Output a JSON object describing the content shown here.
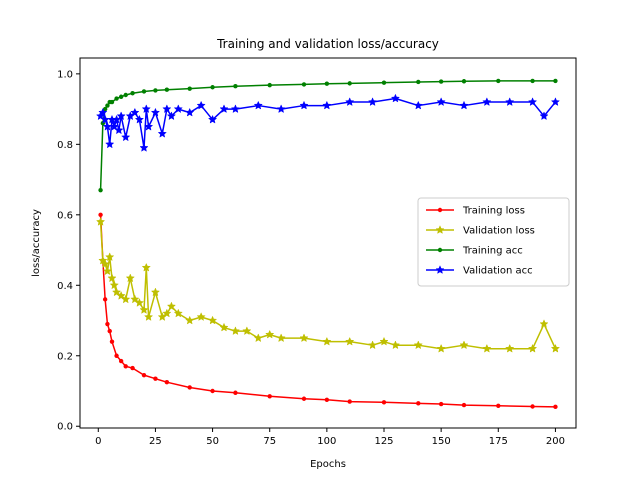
{
  "chart_data": {
    "type": "line",
    "title": "Training and validation loss/accuracy",
    "xlabel": "Epochs",
    "ylabel": "loss/accuracy",
    "xlim": [
      -8,
      209
    ],
    "ylim": [
      -0.005,
      1.045
    ],
    "xticks": [
      0,
      25,
      50,
      75,
      100,
      125,
      150,
      175,
      200
    ],
    "yticks": [
      0.0,
      0.2,
      0.4,
      0.6,
      0.8,
      1.0
    ],
    "xtick_labels": [
      "0",
      "25",
      "50",
      "75",
      "100",
      "125",
      "150",
      "175",
      "200"
    ],
    "ytick_labels": [
      "0.0",
      "0.2",
      "0.4",
      "0.6",
      "0.8",
      "1.0"
    ],
    "grid": false,
    "legend_position": "center-right",
    "series": [
      {
        "name": "Training loss",
        "color": "#ff0000",
        "marker": "dot",
        "x": [
          1,
          2,
          3,
          4,
          5,
          6,
          8,
          10,
          12,
          15,
          20,
          25,
          30,
          40,
          50,
          60,
          75,
          90,
          100,
          110,
          125,
          140,
          150,
          160,
          175,
          190,
          200
        ],
        "y": [
          0.6,
          0.47,
          0.36,
          0.29,
          0.27,
          0.24,
          0.2,
          0.185,
          0.17,
          0.165,
          0.145,
          0.135,
          0.125,
          0.11,
          0.1,
          0.095,
          0.085,
          0.078,
          0.075,
          0.07,
          0.068,
          0.065,
          0.063,
          0.06,
          0.058,
          0.056,
          0.055
        ]
      },
      {
        "name": "Validation loss",
        "color": "#bfbf00",
        "marker": "star",
        "x": [
          1,
          2,
          3,
          4,
          5,
          6,
          7,
          8,
          10,
          12,
          14,
          16,
          18,
          20,
          21,
          22,
          25,
          28,
          30,
          32,
          35,
          40,
          45,
          50,
          55,
          60,
          65,
          70,
          75,
          80,
          90,
          100,
          110,
          120,
          125,
          130,
          140,
          150,
          160,
          170,
          180,
          190,
          195,
          200
        ],
        "y": [
          0.58,
          0.47,
          0.46,
          0.44,
          0.48,
          0.42,
          0.4,
          0.38,
          0.37,
          0.36,
          0.42,
          0.36,
          0.35,
          0.33,
          0.45,
          0.31,
          0.38,
          0.31,
          0.32,
          0.34,
          0.32,
          0.3,
          0.31,
          0.3,
          0.28,
          0.27,
          0.27,
          0.25,
          0.26,
          0.25,
          0.25,
          0.24,
          0.24,
          0.23,
          0.24,
          0.23,
          0.23,
          0.22,
          0.23,
          0.22,
          0.22,
          0.22,
          0.29,
          0.22
        ]
      },
      {
        "name": "Training acc",
        "color": "#008000",
        "marker": "dot",
        "x": [
          1,
          2,
          3,
          4,
          5,
          6,
          8,
          10,
          12,
          15,
          20,
          25,
          30,
          40,
          50,
          60,
          75,
          90,
          100,
          110,
          125,
          140,
          150,
          160,
          175,
          190,
          200
        ],
        "y": [
          0.67,
          0.86,
          0.9,
          0.91,
          0.92,
          0.92,
          0.93,
          0.935,
          0.94,
          0.945,
          0.95,
          0.953,
          0.955,
          0.958,
          0.962,
          0.965,
          0.968,
          0.97,
          0.972,
          0.973,
          0.975,
          0.977,
          0.978,
          0.979,
          0.98,
          0.98,
          0.98
        ]
      },
      {
        "name": "Validation acc",
        "color": "#0000ff",
        "marker": "star",
        "x": [
          1,
          2,
          3,
          4,
          5,
          6,
          7,
          8,
          9,
          10,
          12,
          14,
          16,
          18,
          20,
          21,
          22,
          25,
          28,
          30,
          32,
          35,
          40,
          45,
          50,
          55,
          60,
          70,
          80,
          90,
          100,
          110,
          120,
          130,
          140,
          150,
          160,
          170,
          180,
          190,
          195,
          200
        ],
        "y": [
          0.88,
          0.89,
          0.87,
          0.85,
          0.8,
          0.87,
          0.85,
          0.87,
          0.84,
          0.88,
          0.82,
          0.88,
          0.89,
          0.87,
          0.79,
          0.9,
          0.85,
          0.89,
          0.83,
          0.9,
          0.88,
          0.9,
          0.89,
          0.91,
          0.87,
          0.9,
          0.9,
          0.91,
          0.9,
          0.91,
          0.91,
          0.92,
          0.92,
          0.93,
          0.91,
          0.92,
          0.91,
          0.92,
          0.92,
          0.92,
          0.88,
          0.92
        ]
      }
    ]
  }
}
